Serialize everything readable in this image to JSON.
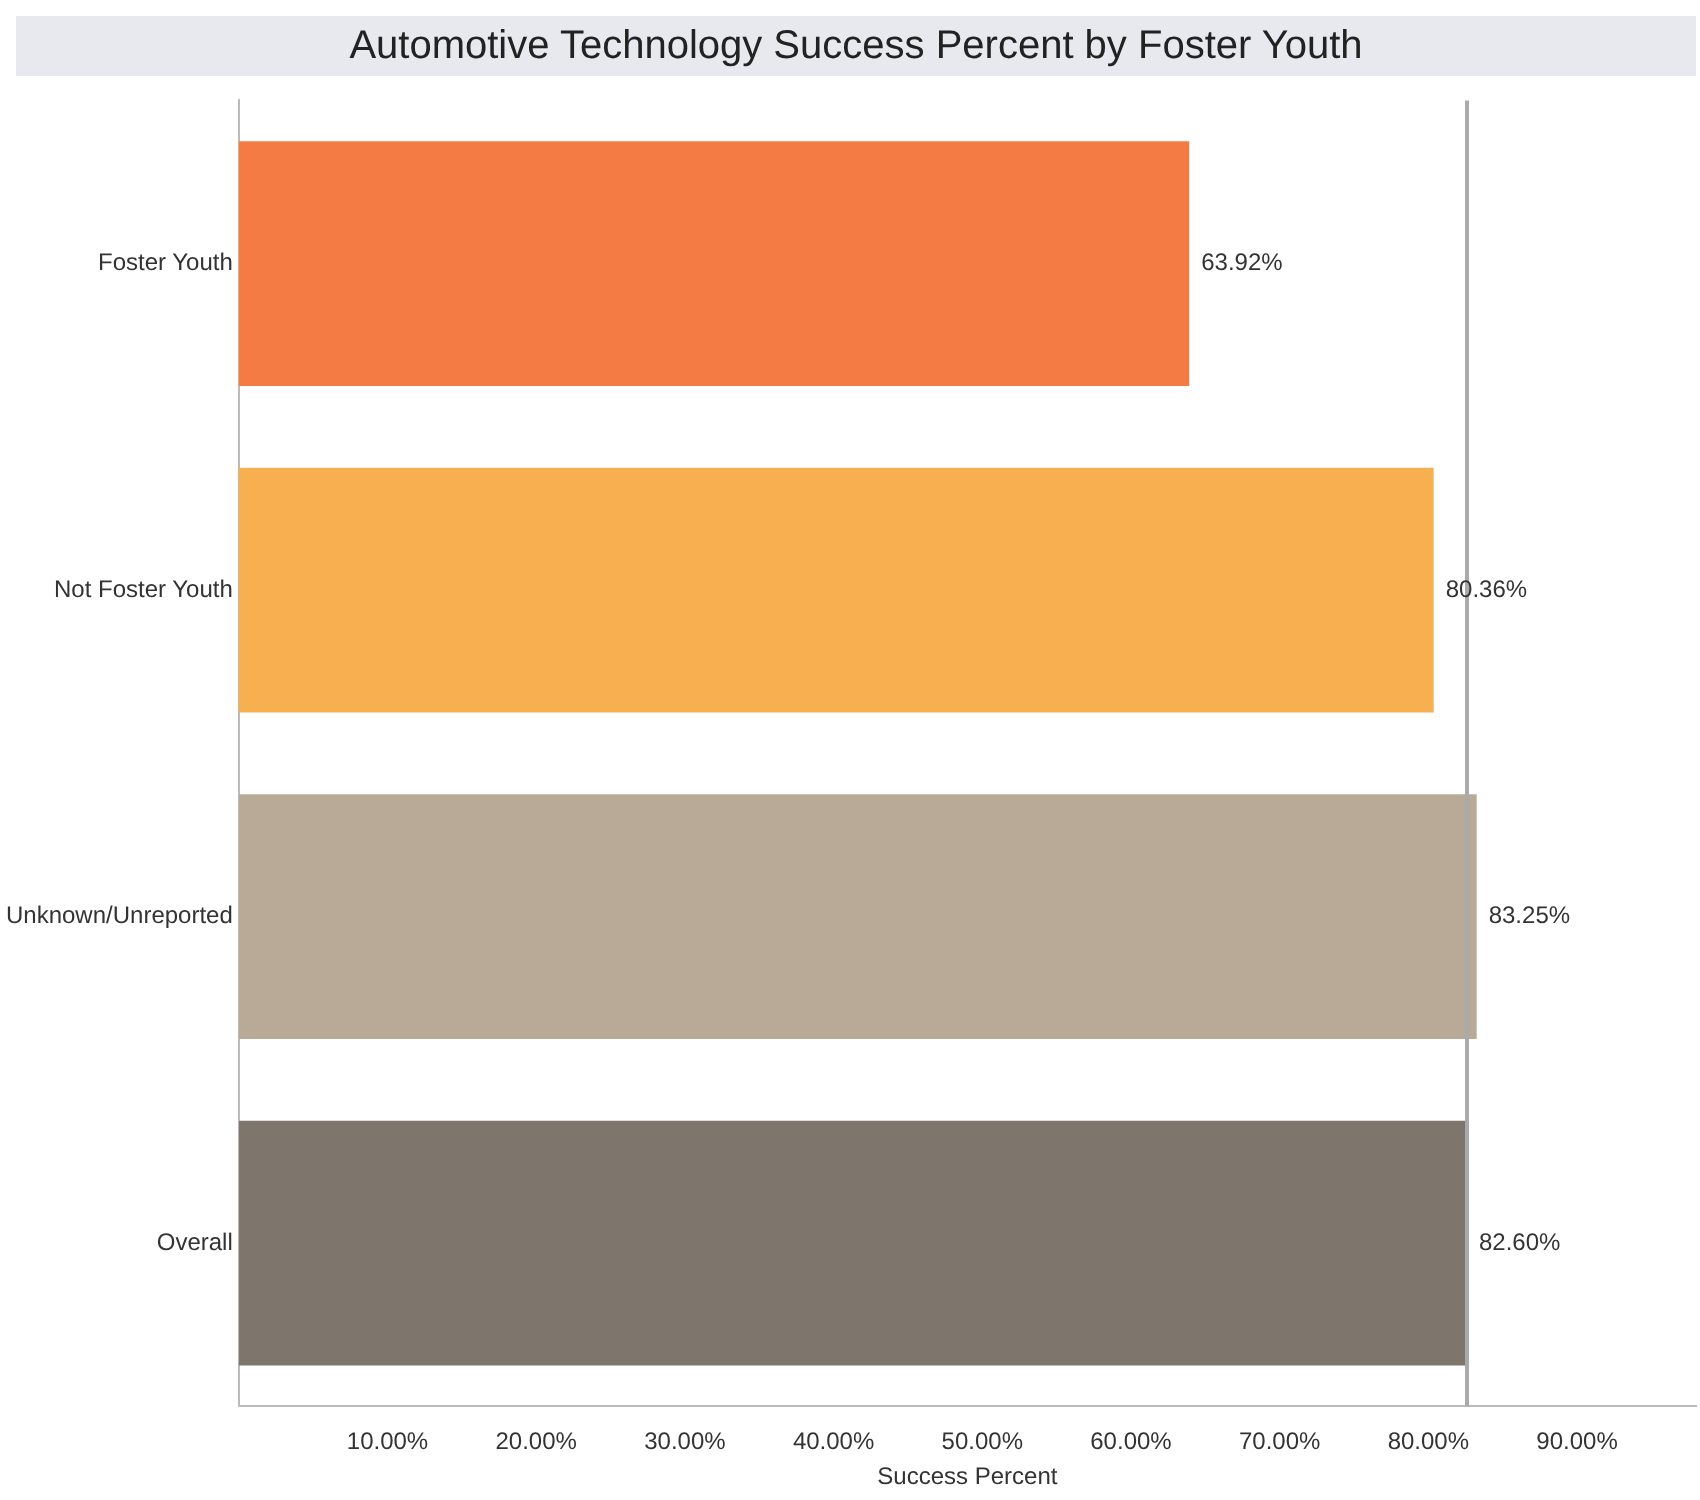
{
  "chart_data": {
    "type": "bar",
    "orientation": "horizontal",
    "title": "Automotive Technology Success Percent by Foster Youth",
    "xlabel": "Success Percent",
    "categories": [
      "Foster Youth",
      "Not Foster Youth",
      "Unknown/Unreported",
      "Overall"
    ],
    "values": [
      63.92,
      80.36,
      83.25,
      82.6
    ],
    "colors": [
      "#f47b43",
      "#f8af4f",
      "#b9aa97",
      "#7e766c"
    ],
    "value_labels": [
      "63.92%",
      "80.36%",
      "83.25%",
      "82.60%"
    ],
    "xlim": [
      0,
      98
    ],
    "xticks": [
      {
        "value": 0,
        "label": null
      },
      {
        "value": 10,
        "label": "10.00%"
      },
      {
        "value": 20,
        "label": "20.00%"
      },
      {
        "value": 30,
        "label": "30.00%"
      },
      {
        "value": 40,
        "label": "40.00%"
      },
      {
        "value": 50,
        "label": "50.00%"
      },
      {
        "value": 60,
        "label": "60.00%"
      },
      {
        "value": 70,
        "label": "70.00%"
      },
      {
        "value": 80,
        "label": "80.00%"
      },
      {
        "value": 90,
        "label": "90.00%"
      }
    ],
    "ref_lines": [
      {
        "axis": "x",
        "value": 82.6,
        "color": "#aaaaaa"
      }
    ],
    "grid": false,
    "legend": false
  }
}
